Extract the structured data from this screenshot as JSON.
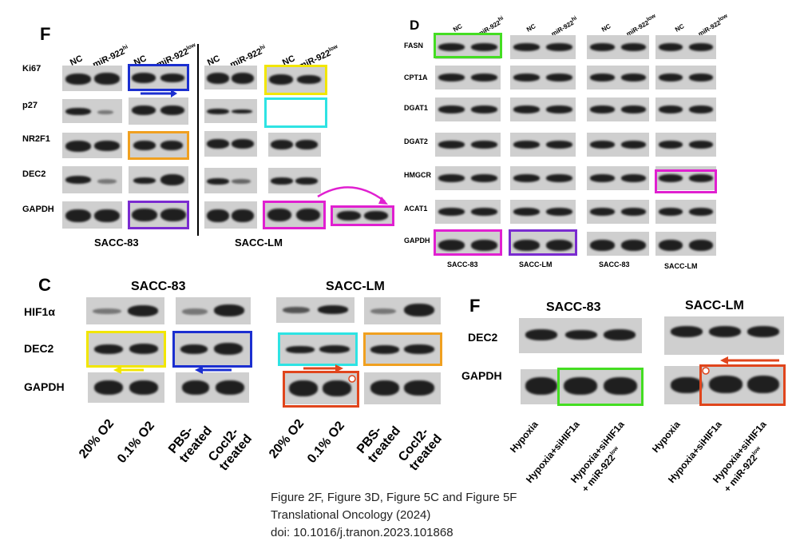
{
  "panel_f_left": {
    "letter": "F",
    "rows": [
      "Ki67",
      "p27",
      "NR2F1",
      "DEC2",
      "GAPDH"
    ],
    "lanes": {
      "nc": "NC",
      "mir_hi": "miR-922",
      "hi_sup": "hi",
      "mir_low": "miR-922",
      "low_sup": "low"
    },
    "group_left": "SACC-83",
    "group_right": "SACC-LM"
  },
  "panel_d": {
    "letter": "D",
    "rows": [
      "FASN",
      "CPT1A",
      "DGAT1",
      "DGAT2",
      "HMGCR",
      "ACAT1",
      "GAPDH"
    ],
    "lanes": {
      "nc": "NC",
      "mir": "miR-922",
      "hi_sup": "hi",
      "low_sup": "low"
    },
    "groups": [
      "SACC-83",
      "SACC-LM",
      "SACC-83",
      "SACC-LM"
    ]
  },
  "panel_c": {
    "letter": "C",
    "title_left": "SACC-83",
    "title_right": "SACC-LM",
    "rows": [
      "HIF1α",
      "DEC2",
      "GAPDH"
    ],
    "conditions": [
      "20% O2",
      "0.1% O2",
      "PBS-\ntreated",
      "Cocl2-\ntreated"
    ]
  },
  "panel_f_right": {
    "letter": "F",
    "title_left": "SACC-83",
    "title_right": "SACC-LM",
    "rows": [
      "DEC2",
      "GAPDH"
    ],
    "conditions": [
      "Hypoxia",
      "Hypoxia+siHIF1a",
      "Hypoxia+siHIF1a\n+ miR-922",
      "low"
    ]
  },
  "caption": {
    "line1": "Figure 2F, Figure 3D, Figure 5C and Figure 5F",
    "line2": "Translational Oncology (2024)",
    "line3": "doi: 10.1016/j.tranon.2023.101868"
  },
  "highlight_colors": {
    "blue": "#1b2fd0",
    "yellow": "#f2e600",
    "cyan": "#2ee3e3",
    "orange": "#f0a020",
    "purple": "#7a2bd0",
    "magenta": "#e020d0",
    "green": "#44dd22",
    "red": "#e0451c"
  }
}
